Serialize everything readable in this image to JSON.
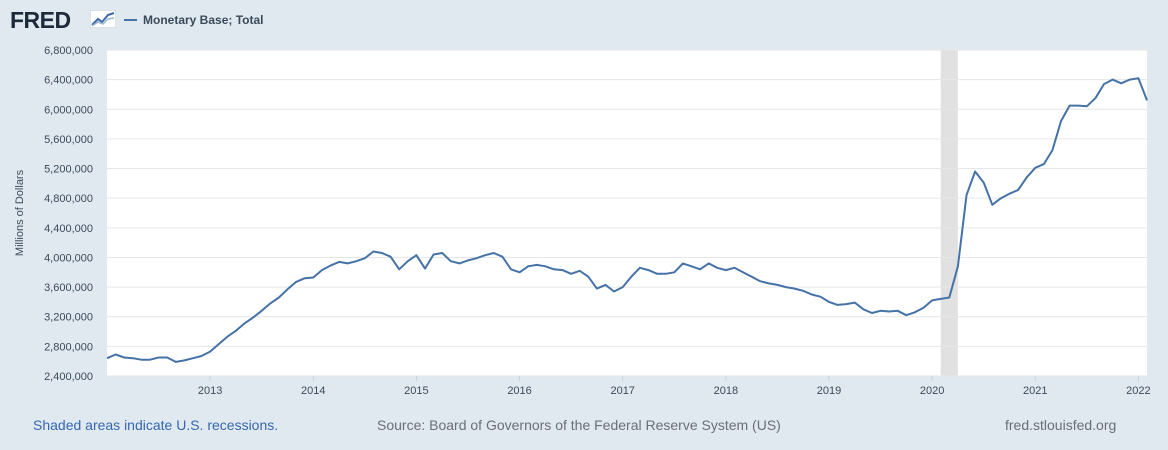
{
  "header": {
    "logo_text": "FRED",
    "logo_graph_icon": "line-graph-icon",
    "legend_label": "Monetary Base; Total"
  },
  "colors": {
    "page_bg": "#e1e9f0",
    "plot_bg": "#ffffff",
    "series": "#4572a7",
    "recession": "#e1e1e1",
    "grid": "#e6e6e6"
  },
  "chart_data": {
    "type": "line",
    "ylabel": "Millions of Dollars",
    "ylim": [
      2400000,
      6800000
    ],
    "yticks": [
      2400000,
      2800000,
      3200000,
      3600000,
      4000000,
      4400000,
      4800000,
      5200000,
      5600000,
      6000000,
      6400000,
      6800000
    ],
    "ytick_labels": [
      "2,400,000",
      "2,800,000",
      "3,200,000",
      "3,600,000",
      "4,000,000",
      "4,400,000",
      "4,800,000",
      "5,200,000",
      "5,600,000",
      "6,000,000",
      "6,400,000",
      "6,800,000"
    ],
    "xlim": [
      "2012-01",
      "2022-02"
    ],
    "xticks": [
      "2013-01",
      "2014-01",
      "2015-01",
      "2016-01",
      "2017-01",
      "2018-01",
      "2019-01",
      "2020-01",
      "2021-01",
      "2022-01"
    ],
    "xtick_labels": [
      "2013",
      "2014",
      "2015",
      "2016",
      "2017",
      "2018",
      "2019",
      "2020",
      "2021",
      "2022"
    ],
    "grid": true,
    "recessions": [
      {
        "start": "2020-02",
        "end": "2020-04"
      }
    ],
    "series": [
      {
        "name": "Monetary Base; Total",
        "x": [
          "2012-01",
          "2012-02",
          "2012-03",
          "2012-04",
          "2012-05",
          "2012-06",
          "2012-07",
          "2012-08",
          "2012-09",
          "2012-10",
          "2012-11",
          "2012-12",
          "2013-01",
          "2013-02",
          "2013-03",
          "2013-04",
          "2013-05",
          "2013-06",
          "2013-07",
          "2013-08",
          "2013-09",
          "2013-10",
          "2013-11",
          "2013-12",
          "2014-01",
          "2014-02",
          "2014-03",
          "2014-04",
          "2014-05",
          "2014-06",
          "2014-07",
          "2014-08",
          "2014-09",
          "2014-10",
          "2014-11",
          "2014-12",
          "2015-01",
          "2015-02",
          "2015-03",
          "2015-04",
          "2015-05",
          "2015-06",
          "2015-07",
          "2015-08",
          "2015-09",
          "2015-10",
          "2015-11",
          "2015-12",
          "2016-01",
          "2016-02",
          "2016-03",
          "2016-04",
          "2016-05",
          "2016-06",
          "2016-07",
          "2016-08",
          "2016-09",
          "2016-10",
          "2016-11",
          "2016-12",
          "2017-01",
          "2017-02",
          "2017-03",
          "2017-04",
          "2017-05",
          "2017-06",
          "2017-07",
          "2017-08",
          "2017-09",
          "2017-10",
          "2017-11",
          "2017-12",
          "2018-01",
          "2018-02",
          "2018-03",
          "2018-04",
          "2018-05",
          "2018-06",
          "2018-07",
          "2018-08",
          "2018-09",
          "2018-10",
          "2018-11",
          "2018-12",
          "2019-01",
          "2019-02",
          "2019-03",
          "2019-04",
          "2019-05",
          "2019-06",
          "2019-07",
          "2019-08",
          "2019-09",
          "2019-10",
          "2019-11",
          "2019-12",
          "2020-01",
          "2020-02",
          "2020-03",
          "2020-04",
          "2020-05",
          "2020-06",
          "2020-07",
          "2020-08",
          "2020-09",
          "2020-10",
          "2020-11",
          "2020-12",
          "2021-01",
          "2021-02",
          "2021-03",
          "2021-04",
          "2021-05",
          "2021-06",
          "2021-07",
          "2021-08",
          "2021-09",
          "2021-10",
          "2021-11",
          "2021-12",
          "2022-01",
          "2022-02"
        ],
        "values": [
          2640000,
          2690000,
          2650000,
          2640000,
          2620000,
          2620000,
          2650000,
          2650000,
          2590000,
          2610000,
          2640000,
          2670000,
          2730000,
          2830000,
          2930000,
          3010000,
          3110000,
          3190000,
          3280000,
          3380000,
          3460000,
          3570000,
          3670000,
          3720000,
          3730000,
          3830000,
          3890000,
          3940000,
          3920000,
          3950000,
          3990000,
          4080000,
          4060000,
          4010000,
          3840000,
          3950000,
          4030000,
          3850000,
          4040000,
          4060000,
          3950000,
          3920000,
          3960000,
          3990000,
          4030000,
          4060000,
          4010000,
          3840000,
          3800000,
          3880000,
          3900000,
          3880000,
          3840000,
          3830000,
          3780000,
          3820000,
          3740000,
          3580000,
          3630000,
          3540000,
          3600000,
          3740000,
          3860000,
          3830000,
          3780000,
          3780000,
          3800000,
          3920000,
          3880000,
          3840000,
          3920000,
          3860000,
          3830000,
          3860000,
          3800000,
          3740000,
          3680000,
          3650000,
          3630000,
          3600000,
          3580000,
          3550000,
          3500000,
          3470000,
          3400000,
          3360000,
          3370000,
          3390000,
          3300000,
          3250000,
          3280000,
          3270000,
          3280000,
          3220000,
          3260000,
          3320000,
          3420000,
          3440000,
          3460000,
          3880000,
          4840000,
          5160000,
          5010000,
          4710000,
          4800000,
          4860000,
          4910000,
          5080000,
          5210000,
          5260000,
          5450000,
          5840000,
          6050000,
          6050000,
          6040000,
          6150000,
          6340000,
          6400000,
          6350000,
          6400000,
          6420000,
          6120000
        ]
      }
    ]
  },
  "footer": {
    "recession_note": "Shaded areas indicate U.S. recessions.",
    "source": "Source: Board of Governors of the Federal Reserve System (US)",
    "site": "fred.stlouisfed.org"
  }
}
